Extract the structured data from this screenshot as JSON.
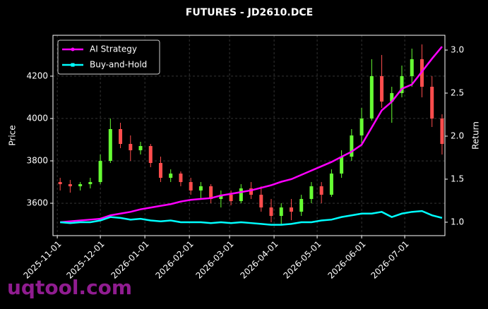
{
  "chart_data": {
    "type": "candlestick",
    "title": "FUTURES - JD2610.DCE",
    "ylabel": "Price",
    "y2label": "Return",
    "watermark": "uqtool.com",
    "xlim": [
      "2025-10-29",
      "2026-07-29"
    ],
    "xticks": [
      "2025-11-01",
      "2025-12-01",
      "2026-01-01",
      "2026-02-01",
      "2026-03-01",
      "2026-04-01",
      "2026-05-01",
      "2026-06-01",
      "2026-07-01"
    ],
    "ylim": [
      3447,
      4393
    ],
    "yticks": [
      3600,
      3800,
      4000,
      4200
    ],
    "y2lim": [
      0.844,
      3.172
    ],
    "y2ticks": [
      {
        "value": 1,
        "label": "1.0"
      },
      {
        "value": 1.5,
        "label": "1.5"
      },
      {
        "value": 2,
        "label": "2.0"
      },
      {
        "value": 2.5,
        "label": "2.5"
      },
      {
        "value": 3,
        "label": "3.0"
      }
    ],
    "grid": true,
    "legend": "upper left",
    "up_color": "#66ff33",
    "down_color": "#ff4d4d",
    "x": [
      "2025-11-03",
      "2025-11-10",
      "2025-11-17",
      "2025-11-24",
      "2025-12-01",
      "2025-12-08",
      "2025-12-15",
      "2025-12-22",
      "2025-12-29",
      "2026-01-05",
      "2026-01-12",
      "2026-01-19",
      "2026-01-26",
      "2026-02-02",
      "2026-02-09",
      "2026-02-16",
      "2026-02-23",
      "2026-03-02",
      "2026-03-09",
      "2026-03-16",
      "2026-03-23",
      "2026-03-30",
      "2026-04-06",
      "2026-04-13",
      "2026-04-20",
      "2026-04-27",
      "2026-05-04",
      "2026-05-11",
      "2026-05-18",
      "2026-05-25",
      "2026-06-01",
      "2026-06-08",
      "2026-06-15",
      "2026-06-22",
      "2026-06-29",
      "2026-07-06",
      "2026-07-13",
      "2026-07-20",
      "2026-07-27"
    ],
    "candles": {
      "open": [
        3700,
        3690,
        3680,
        3690,
        3700,
        3800,
        3950,
        3880,
        3850,
        3870,
        3790,
        3720,
        3740,
        3700,
        3660,
        3680,
        3620,
        3640,
        3610,
        3670,
        3640,
        3580,
        3540,
        3580,
        3560,
        3620,
        3680,
        3640,
        3740,
        3820,
        3920,
        4000,
        4200,
        4080,
        4120,
        4200,
        4280,
        4150,
        4000
      ],
      "high": [
        3720,
        3710,
        3700,
        3720,
        3830,
        4000,
        3980,
        3920,
        3890,
        3880,
        3820,
        3760,
        3750,
        3720,
        3700,
        3690,
        3660,
        3660,
        3690,
        3700,
        3680,
        3620,
        3600,
        3620,
        3640,
        3700,
        3700,
        3760,
        3850,
        3950,
        4050,
        4280,
        4300,
        4150,
        4250,
        4330,
        4350,
        4200,
        4020
      ],
      "low": [
        3660,
        3650,
        3660,
        3670,
        3690,
        3790,
        3860,
        3800,
        3830,
        3770,
        3700,
        3700,
        3680,
        3640,
        3620,
        3600,
        3580,
        3590,
        3600,
        3620,
        3560,
        3510,
        3500,
        3520,
        3540,
        3600,
        3600,
        3630,
        3720,
        3800,
        3880,
        3990,
        4050,
        3980,
        4100,
        4150,
        4100,
        3960,
        3830
      ],
      "close": [
        3690,
        3680,
        3690,
        3700,
        3800,
        3950,
        3880,
        3850,
        3870,
        3790,
        3720,
        3740,
        3700,
        3660,
        3680,
        3620,
        3640,
        3610,
        3670,
        3640,
        3580,
        3540,
        3580,
        3560,
        3620,
        3680,
        3640,
        3740,
        3820,
        3920,
        4000,
        4200,
        4080,
        4120,
        4200,
        4280,
        4150,
        4000,
        3880
      ]
    },
    "series": [
      {
        "name": "AI Strategy",
        "color": "#ff00ff",
        "axis": "y2",
        "values": [
          1.0,
          1.01,
          1.02,
          1.03,
          1.04,
          1.08,
          1.1,
          1.12,
          1.15,
          1.17,
          1.19,
          1.21,
          1.24,
          1.26,
          1.27,
          1.28,
          1.31,
          1.33,
          1.35,
          1.37,
          1.4,
          1.43,
          1.47,
          1.5,
          1.55,
          1.6,
          1.65,
          1.7,
          1.76,
          1.82,
          1.9,
          2.1,
          2.3,
          2.4,
          2.55,
          2.6,
          2.75,
          2.9,
          3.04
        ]
      },
      {
        "name": "Buy-and-Hold",
        "color": "#00ffff",
        "axis": "y2",
        "values": [
          1.0,
          0.99,
          1.0,
          1.0,
          1.02,
          1.06,
          1.05,
          1.03,
          1.04,
          1.02,
          1.01,
          1.02,
          1.0,
          1.0,
          1.0,
          0.99,
          1.0,
          0.99,
          1.0,
          0.99,
          0.98,
          0.97,
          0.97,
          0.98,
          1.0,
          1.0,
          1.02,
          1.03,
          1.06,
          1.08,
          1.1,
          1.1,
          1.12,
          1.06,
          1.1,
          1.12,
          1.13,
          1.08,
          1.05
        ]
      }
    ]
  }
}
